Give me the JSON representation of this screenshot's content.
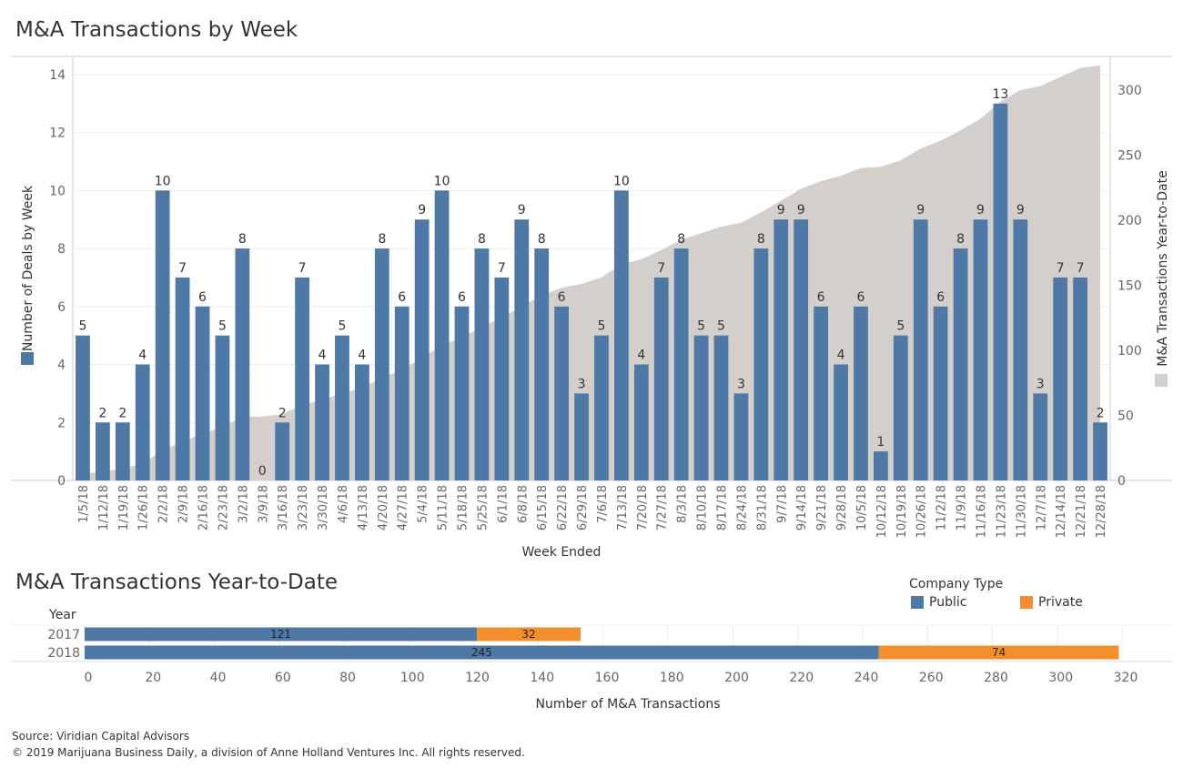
{
  "weekly_title": "M&A Transactions by Week",
  "ytd_title": "M&A Transactions Year-to-Date",
  "source": "Source: Viridian Capital Advisors",
  "copyright": "© 2019 Marijuana Business Daily, a division of Anne Holland Ventures Inc. All rights reserved.",
  "colors": {
    "public": "#4e79a7",
    "private": "#f28e2b",
    "ytd_area": "#d5cfcc",
    "grid": "#eeeeee",
    "axis_text": "#666666"
  },
  "legend": {
    "title": "Company Type",
    "public": "Public",
    "private": "Private"
  },
  "chart_data": [
    {
      "type": "bar",
      "title": "M&A Transactions by Week",
      "xlabel": "Week Ended",
      "ylabel": "Number of Deals by Week",
      "y2label": "M&A Transactions Year-to-Date",
      "ylim": [
        0,
        14.5
      ],
      "y2lim": [
        0,
        323
      ],
      "yticks": [
        0,
        2,
        4,
        6,
        8,
        10,
        12,
        14
      ],
      "y2ticks": [
        0,
        50,
        100,
        150,
        200,
        250,
        300
      ],
      "categories": [
        "1/5/18",
        "1/12/18",
        "1/19/18",
        "1/26/18",
        "2/2/18",
        "2/9/18",
        "2/16/18",
        "2/23/18",
        "3/2/18",
        "3/9/18",
        "3/16/18",
        "3/23/18",
        "3/30/18",
        "4/6/18",
        "4/13/18",
        "4/20/18",
        "4/27/18",
        "5/4/18",
        "5/11/18",
        "5/18/18",
        "5/25/18",
        "6/1/18",
        "6/8/18",
        "6/15/18",
        "6/22/18",
        "6/29/18",
        "7/6/18",
        "7/13/18",
        "7/20/18",
        "7/27/18",
        "8/3/18",
        "8/10/18",
        "8/17/18",
        "8/24/18",
        "8/31/18",
        "9/7/18",
        "9/14/18",
        "9/21/18",
        "9/28/18",
        "10/5/18",
        "10/12/18",
        "10/19/18",
        "10/26/18",
        "11/2/18",
        "11/9/18",
        "11/16/18",
        "11/23/18",
        "11/30/18",
        "12/7/18",
        "12/14/18",
        "12/21/18",
        "12/28/18"
      ],
      "series": [
        {
          "name": "Number of Deals by Week",
          "type": "bar",
          "values": [
            5,
            2,
            2,
            4,
            10,
            7,
            6,
            5,
            8,
            0,
            2,
            7,
            4,
            5,
            4,
            8,
            6,
            9,
            10,
            6,
            8,
            7,
            9,
            8,
            6,
            3,
            5,
            10,
            4,
            7,
            8,
            5,
            5,
            3,
            8,
            9,
            9,
            6,
            4,
            6,
            1,
            5,
            9,
            6,
            8,
            9,
            13,
            9,
            3,
            7,
            7,
            2
          ]
        },
        {
          "name": "M&A Transactions Year-to-Date",
          "type": "area",
          "values": [
            5,
            7,
            9,
            13,
            23,
            30,
            36,
            41,
            49,
            49,
            51,
            58,
            62,
            67,
            71,
            79,
            85,
            94,
            104,
            110,
            118,
            125,
            134,
            142,
            148,
            151,
            156,
            166,
            170,
            177,
            185,
            190,
            195,
            198,
            206,
            215,
            224,
            230,
            234,
            240,
            241,
            246,
            255,
            261,
            269,
            278,
            291,
            300,
            303,
            310,
            317,
            319
          ]
        }
      ]
    },
    {
      "type": "bar",
      "orientation": "horizontal",
      "stacked": true,
      "title": "M&A Transactions Year-to-Date",
      "xlabel": "Number of M&A Transactions",
      "ylabel": "Year",
      "xlim": [
        0,
        320
      ],
      "xticks": [
        0,
        20,
        40,
        60,
        80,
        100,
        120,
        140,
        160,
        180,
        200,
        220,
        240,
        260,
        280,
        300,
        320
      ],
      "categories": [
        "2017",
        "2018"
      ],
      "series": [
        {
          "name": "Public",
          "values": [
            121,
            245
          ]
        },
        {
          "name": "Private",
          "values": [
            32,
            74
          ]
        }
      ]
    }
  ]
}
